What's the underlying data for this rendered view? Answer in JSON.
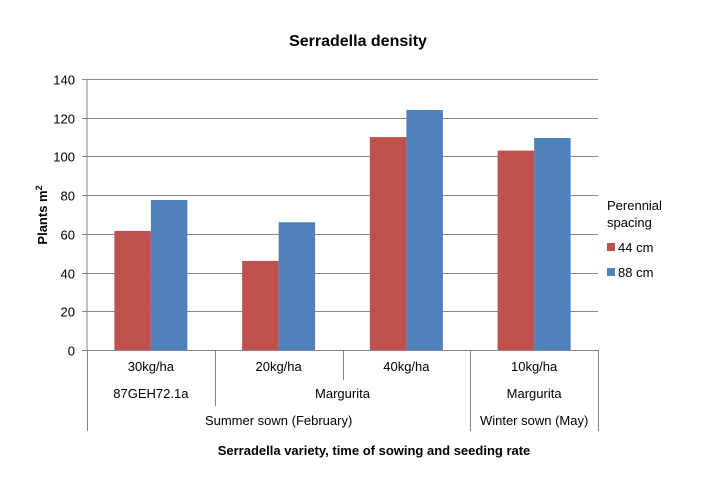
{
  "chart_data": {
    "type": "bar",
    "title": "Serradella density",
    "ylabel": "Plants m",
    "ylabel_superscript": "2",
    "xlabel": "Serradella variety, time of sowing and seeding rate",
    "ylim": [
      0,
      140
    ],
    "yticks": [
      0,
      20,
      40,
      60,
      80,
      100,
      120,
      140
    ],
    "grid": true,
    "categories": [
      "30kg/ha",
      "20kg/ha",
      "40kg/ha",
      "10kg/ha"
    ],
    "category_groups": {
      "variety": [
        {
          "label": "87GEH72.1a",
          "span": [
            0,
            0
          ]
        },
        {
          "label": "Margurita",
          "span": [
            1,
            2
          ]
        },
        {
          "label": "Margurita",
          "span": [
            3,
            3
          ]
        }
      ],
      "sowing_time": [
        {
          "label": "Summer sown (February)",
          "span": [
            0,
            2
          ]
        },
        {
          "label": "Winter sown (May)",
          "span": [
            3,
            3
          ]
        }
      ]
    },
    "legend": {
      "title_line1": "Perennial",
      "title_line2": "spacing",
      "placement": "right"
    },
    "series": [
      {
        "name": "44 cm",
        "color": "#C0504D",
        "values": [
          61.5,
          46,
          110,
          103
        ]
      },
      {
        "name": "88 cm",
        "color": "#4F81BD",
        "values": [
          77.5,
          66,
          124,
          109.5
        ]
      }
    ]
  }
}
